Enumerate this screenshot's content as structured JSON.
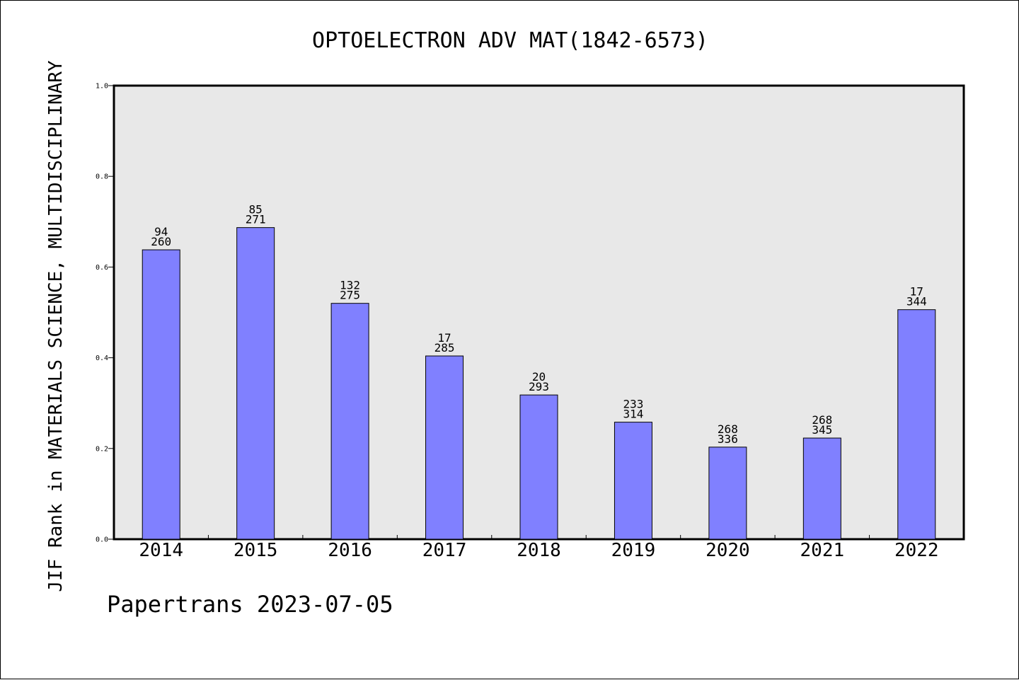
{
  "chart_data": {
    "type": "bar",
    "title": "OPTOELECTRON ADV MAT(1842-6573)",
    "xlabel": "",
    "ylabel": "JIF Rank in MATERIALS SCIENCE, MULTIDISCIPLINARY",
    "ylim": [
      0.0,
      1.0
    ],
    "yticks": [
      "0.0",
      "0.2",
      "0.4",
      "0.6",
      "0.8",
      "1.0"
    ],
    "categories": [
      "2014",
      "2015",
      "2016",
      "2017",
      "2018",
      "2019",
      "2020",
      "2021",
      "2022"
    ],
    "values": [
      0.638,
      0.687,
      0.52,
      0.404,
      0.318,
      0.258,
      0.203,
      0.223,
      0.506
    ],
    "ranks": [
      "94",
      "85",
      "132",
      "17",
      "20",
      "233",
      "268",
      "268",
      "17"
    ],
    "totals": [
      "260",
      "271",
      "275",
      "285",
      "293",
      "314",
      "336",
      "345",
      "344"
    ],
    "bar_color": "#8080ff",
    "plot_background": "#e8e8e8",
    "grid": false,
    "legend": "none"
  },
  "footer": "Papertrans 2023-07-05"
}
